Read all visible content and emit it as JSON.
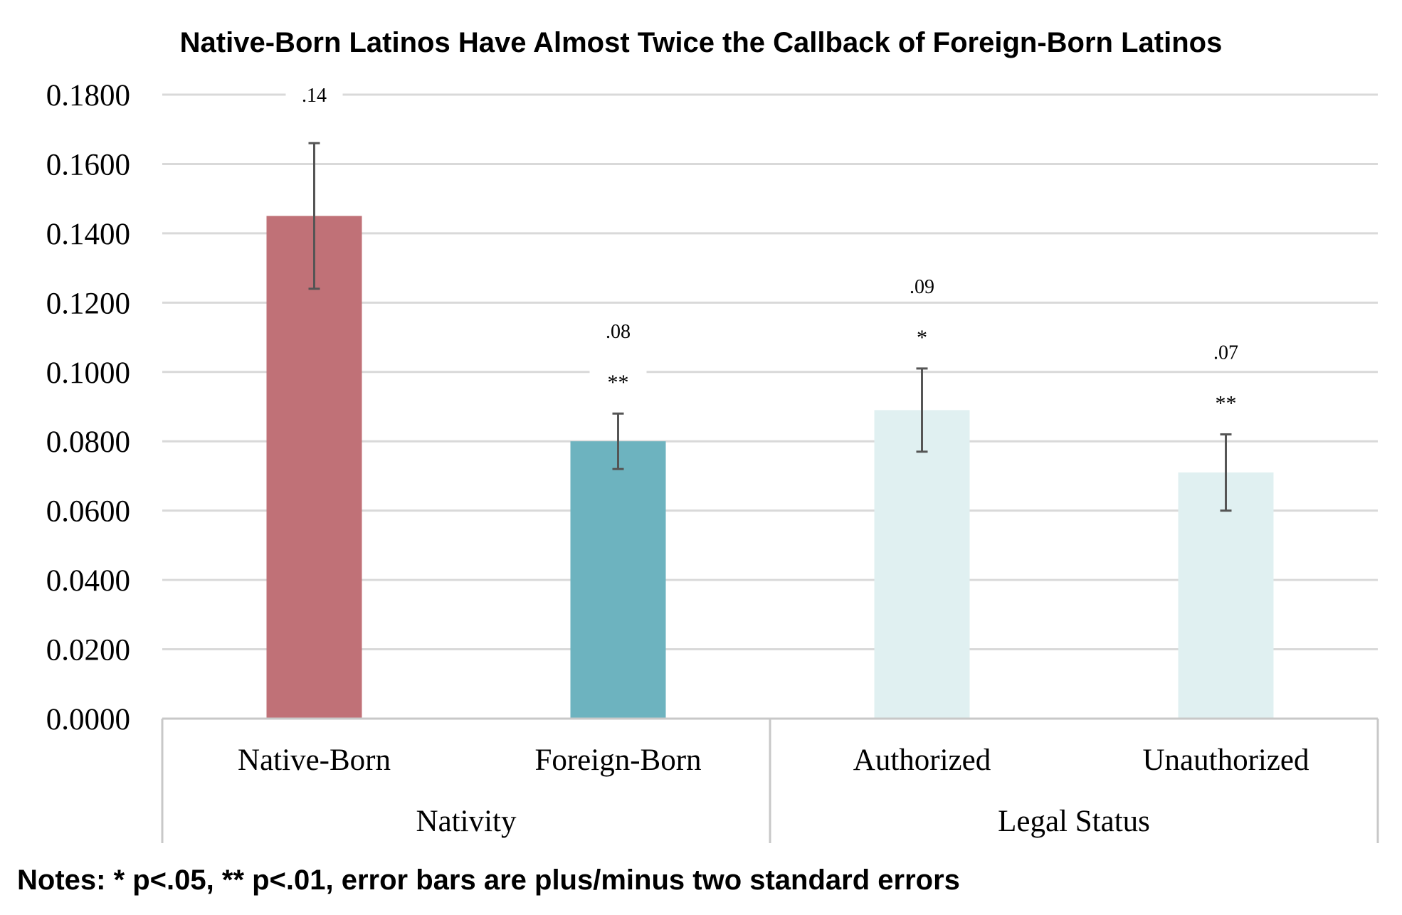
{
  "chart_data": {
    "type": "bar",
    "title": "Native-Born Latinos Have Almost Twice the Callback of Foreign-Born Latinos",
    "notes": "Notes: * p<.05, ** p<.01, error bars are plus/minus two standard errors",
    "ylim": [
      0,
      0.18
    ],
    "yticks": [
      "0.0000",
      "0.0200",
      "0.0400",
      "0.0600",
      "0.0800",
      "0.1000",
      "0.1200",
      "0.1400",
      "0.1600",
      "0.1800"
    ],
    "grid": true,
    "groups": [
      {
        "name": "Nativity",
        "categories": [
          "Native-Born",
          "Foreign-Born"
        ]
      },
      {
        "name": "Legal Status",
        "categories": [
          "Authorized",
          "Unauthorized"
        ]
      }
    ],
    "categories": [
      "Native-Born",
      "Foreign-Born",
      "Authorized",
      "Unauthorized"
    ],
    "values": [
      0.145,
      0.08,
      0.089,
      0.071
    ],
    "error_low": [
      0.124,
      0.072,
      0.077,
      0.06
    ],
    "error_high": [
      0.166,
      0.088,
      0.101,
      0.082
    ],
    "data_labels": [
      ".14",
      ".08",
      ".09",
      ".07"
    ],
    "significance": [
      "",
      "**",
      "*",
      "**"
    ],
    "colors": [
      "#c07177",
      "#6db3bf",
      "#e0f0f1",
      "#e0f0f1"
    ]
  }
}
